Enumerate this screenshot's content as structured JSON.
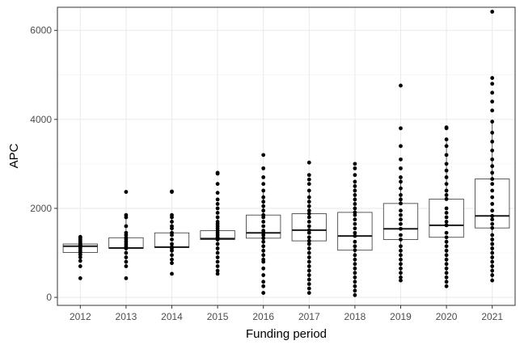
{
  "chart_data": {
    "type": "boxplot",
    "title": "",
    "xlabel": "Funding period",
    "ylabel": "APC",
    "categories": [
      "2012",
      "2013",
      "2014",
      "2015",
      "2016",
      "2017",
      "2018",
      "2019",
      "2020",
      "2021"
    ],
    "ylim": [
      -180,
      6520
    ],
    "y_ticks": [
      0,
      2000,
      4000,
      6000
    ],
    "grid": true,
    "boxes": [
      {
        "x": "2012",
        "q1": 1010,
        "median": 1150,
        "q3": 1200,
        "whisker_low": 1010,
        "whisker_high": 1300,
        "points": [
          430,
          700,
          820,
          900,
          960,
          1010,
          1050,
          1100,
          1130,
          1150,
          1170,
          1180,
          1200,
          1230,
          1260,
          1300,
          1340,
          1360
        ]
      },
      {
        "x": "2013",
        "q1": 1100,
        "median": 1110,
        "q3": 1340,
        "whisker_low": 700,
        "whisker_high": 1800,
        "points": [
          430,
          700,
          800,
          900,
          1000,
          1100,
          1110,
          1150,
          1200,
          1250,
          1300,
          1340,
          1400,
          1450,
          1600,
          1800,
          1850,
          2370
        ]
      },
      {
        "x": "2014",
        "q1": 1120,
        "median": 1130,
        "q3": 1450,
        "whisker_low": 770,
        "whisker_high": 1850,
        "points": [
          530,
          770,
          850,
          950,
          1050,
          1100,
          1130,
          1200,
          1300,
          1400,
          1450,
          1550,
          1600,
          1700,
          1800,
          1850,
          2370,
          2380
        ]
      },
      {
        "x": "2015",
        "q1": 1300,
        "median": 1320,
        "q3": 1500,
        "whisker_low": 1000,
        "whisker_high": 1800,
        "points": [
          530,
          600,
          700,
          800,
          900,
          1000,
          1100,
          1200,
          1300,
          1320,
          1350,
          1400,
          1450,
          1500,
          1550,
          1600,
          1650,
          1700,
          1800,
          1900,
          2000,
          2100,
          2200,
          2350,
          2550,
          2780,
          2800
        ]
      },
      {
        "x": "2016",
        "q1": 1330,
        "median": 1450,
        "q3": 1850,
        "whisker_low": 850,
        "whisker_high": 2400,
        "points": [
          100,
          250,
          350,
          500,
          650,
          800,
          850,
          950,
          1050,
          1150,
          1250,
          1330,
          1400,
          1450,
          1500,
          1600,
          1700,
          1800,
          1850,
          1950,
          2050,
          2150,
          2250,
          2400,
          2550,
          2700,
          2900,
          3200
        ]
      },
      {
        "x": "2017",
        "q1": 1270,
        "median": 1510,
        "q3": 1880,
        "whisker_low": 400,
        "whisker_high": 2400,
        "points": [
          100,
          200,
          300,
          400,
          500,
          600,
          700,
          800,
          900,
          1000,
          1100,
          1200,
          1270,
          1350,
          1450,
          1510,
          1600,
          1700,
          1800,
          1880,
          1950,
          2050,
          2150,
          2250,
          2400,
          2550,
          2650,
          2750,
          3030
        ]
      },
      {
        "x": "2018",
        "q1": 1060,
        "median": 1380,
        "q3": 1910,
        "whisker_low": 100,
        "whisker_high": 2600,
        "points": [
          50,
          150,
          250,
          350,
          450,
          550,
          650,
          750,
          850,
          950,
          1060,
          1150,
          1250,
          1380,
          1450,
          1550,
          1650,
          1750,
          1850,
          1910,
          2000,
          2100,
          2200,
          2300,
          2400,
          2500,
          2600,
          2750,
          2900,
          3000
        ]
      },
      {
        "x": "2019",
        "q1": 1300,
        "median": 1540,
        "q3": 2110,
        "whisker_low": 400,
        "whisker_high": 2700,
        "points": [
          380,
          450,
          550,
          650,
          750,
          850,
          950,
          1050,
          1150,
          1300,
          1400,
          1540,
          1650,
          1750,
          1850,
          1950,
          2110,
          2200,
          2300,
          2450,
          2600,
          2700,
          2900,
          3100,
          3400,
          3800,
          4760
        ]
      },
      {
        "x": "2020",
        "q1": 1350,
        "median": 1620,
        "q3": 2210,
        "whisker_low": 300,
        "whisker_high": 3500,
        "points": [
          250,
          350,
          450,
          550,
          650,
          750,
          850,
          950,
          1050,
          1150,
          1250,
          1350,
          1450,
          1620,
          1700,
          1800,
          1900,
          2000,
          2210,
          2300,
          2400,
          2550,
          2700,
          2850,
          3000,
          3200,
          3400,
          3550,
          3800,
          3820
        ]
      },
      {
        "x": "2021",
        "q1": 1560,
        "median": 1830,
        "q3": 2660,
        "whisker_low": 400,
        "whisker_high": 3950,
        "points": [
          380,
          500,
          600,
          700,
          800,
          900,
          1000,
          1100,
          1200,
          1300,
          1400,
          1560,
          1650,
          1750,
          1830,
          1950,
          2100,
          2250,
          2400,
          2550,
          2660,
          2800,
          2950,
          3100,
          3300,
          3500,
          3700,
          3950,
          4200,
          4400,
          4600,
          4800,
          4930,
          6420
        ]
      }
    ]
  }
}
